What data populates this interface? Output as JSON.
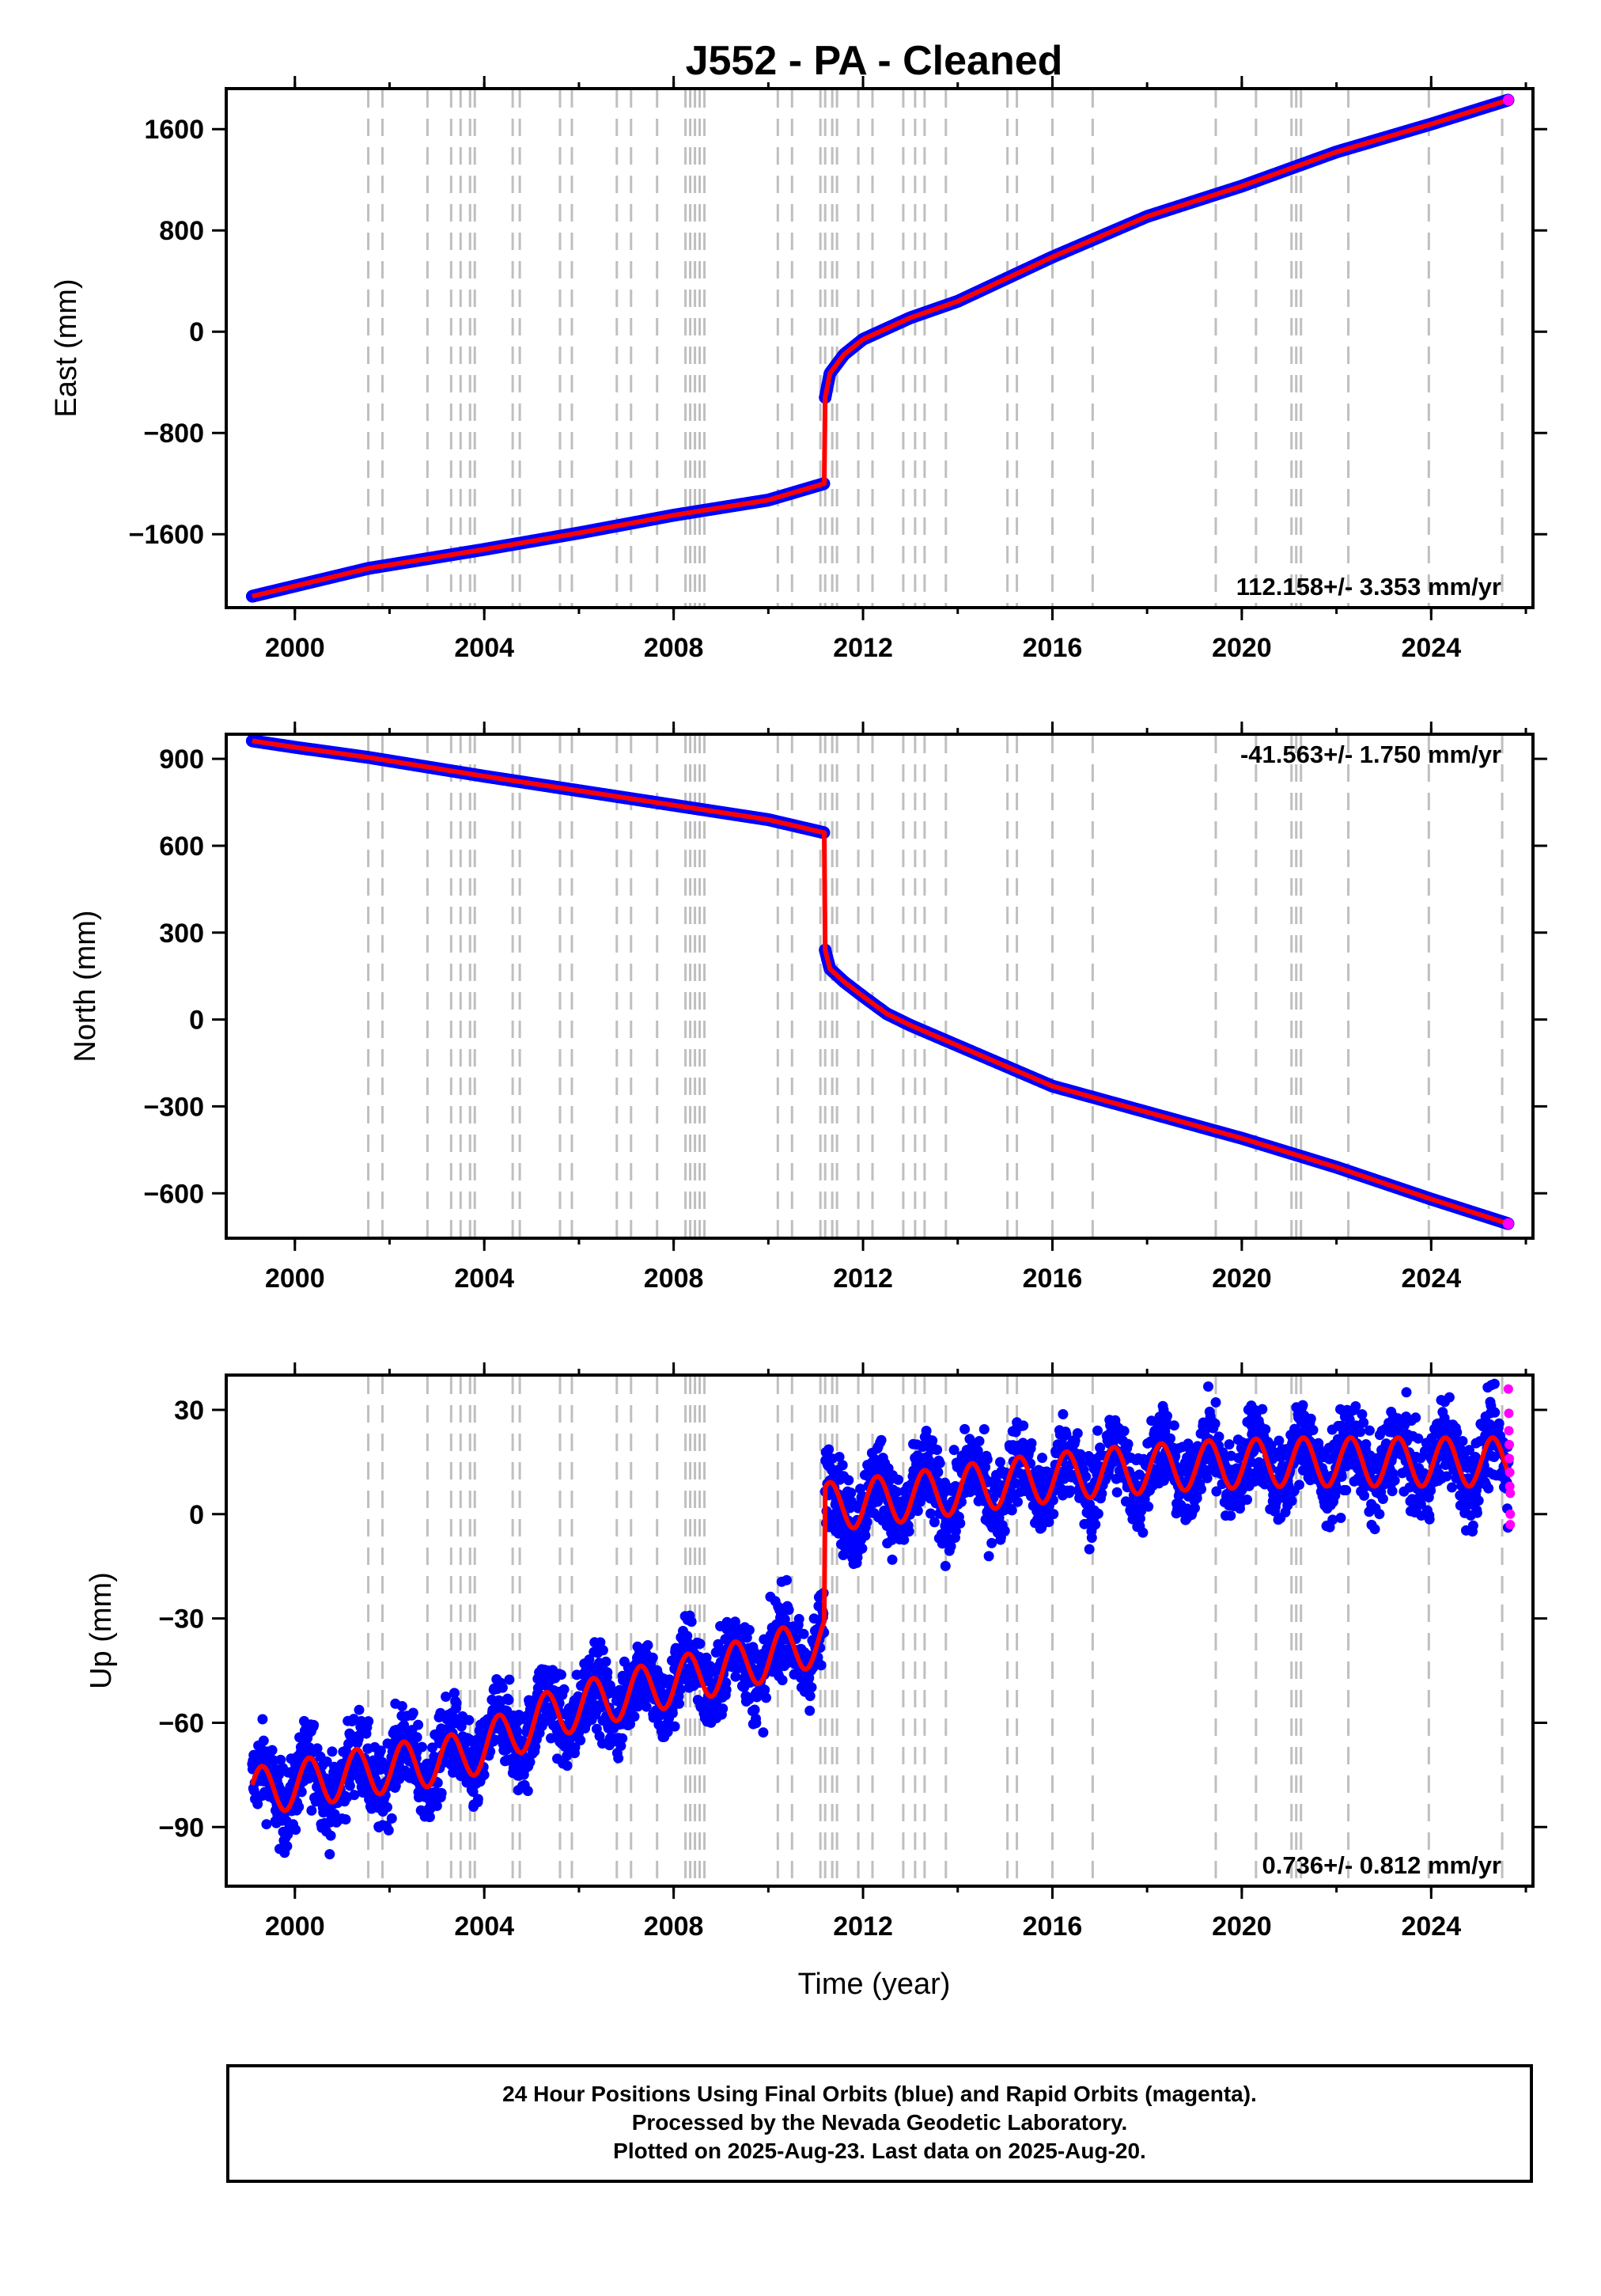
{
  "title": "J552  - PA - Cleaned",
  "colors": {
    "final_orbits": "#0000ff",
    "rapid_orbits": "#ff00ff",
    "model": "#ff0000",
    "event_lines": "#bfbfbf"
  },
  "xlabel": "Time (year)",
  "x_ticks": [
    2000,
    2004,
    2008,
    2012,
    2016,
    2020,
    2024
  ],
  "xlim": [
    1998.55,
    2026.15
  ],
  "event_lines": [
    2001.55,
    2001.85,
    2002.8,
    2003.3,
    2003.5,
    2003.7,
    2003.8,
    2004.6,
    2004.75,
    2005.6,
    2005.85,
    2006.8,
    2007.1,
    2007.65,
    2008.25,
    2008.35,
    2008.45,
    2008.55,
    2008.65,
    2010.2,
    2010.5,
    2011.1,
    2011.2,
    2011.35,
    2011.45,
    2011.9,
    2012.2,
    2012.85,
    2013.1,
    2013.3,
    2013.75,
    2015.05,
    2015.25,
    2016.0,
    2016.85,
    2019.45,
    2020.3,
    2021.05,
    2021.15,
    2021.25,
    2022.25,
    2023.95,
    2025.5
  ],
  "chart_data": [
    {
      "type": "scatter",
      "ylabel": "East (mm)",
      "y_ticks": [
        -1600,
        -800,
        0,
        800,
        1600
      ],
      "ylim": [
        -2180,
        1920
      ],
      "rate_text": "112.158+/- 3.353 mm/yr",
      "rate_position": "bottom-right",
      "series": [
        {
          "x": [
            1999.1,
            2001.55,
            2004.0,
            2006.0,
            2008.0,
            2010.0,
            2011.18
          ],
          "y": [
            -2090,
            -1870,
            -1720,
            -1590,
            -1450,
            -1330,
            -1200
          ]
        },
        {
          "x": [
            2011.2,
            2011.3,
            2011.6,
            2012.0,
            2013.0,
            2014.0,
            2016.0,
            2018.0,
            2020.0,
            2022.0,
            2024.0,
            2025.63
          ],
          "y": [
            -520,
            -330,
            -180,
            -60,
            110,
            240,
            590,
            910,
            1150,
            1420,
            1640,
            1830
          ]
        }
      ]
    },
    {
      "type": "scatter",
      "ylabel": "North (mm)",
      "y_ticks": [
        -600,
        -300,
        0,
        300,
        600,
        900
      ],
      "ylim": [
        -755,
        985
      ],
      "rate_text": "-41.563+/- 1.750 mm/yr",
      "rate_position": "top-right",
      "series": [
        {
          "x": [
            1999.1,
            2000.0,
            2001.55,
            2004.0,
            2006.0,
            2008.0,
            2010.0,
            2011.18
          ],
          "y": [
            962,
            940,
            905,
            840,
            790,
            740,
            690,
            645
          ]
        },
        {
          "x": [
            2011.2,
            2011.3,
            2011.6,
            2012.0,
            2012.5,
            2013.0,
            2014.0,
            2016.0,
            2018.0,
            2020.0,
            2022.0,
            2024.0,
            2025.63
          ],
          "y": [
            240,
            175,
            130,
            80,
            20,
            -20,
            -90,
            -230,
            -320,
            -410,
            -510,
            -620,
            -705
          ]
        }
      ]
    },
    {
      "type": "scatter",
      "ylabel": "Up (mm)",
      "y_ticks": [
        -90,
        -60,
        -30,
        0,
        30
      ],
      "ylim": [
        -107,
        40
      ],
      "rate_text": "0.736+/- 0.812 mm/yr",
      "rate_position": "bottom-right",
      "seasonal_amplitude_mm": 7,
      "series": [
        {
          "x": [
            1999.1,
            2001.55,
            2003.5,
            2005.5,
            2007.5,
            2009.5,
            2011.18
          ],
          "y": [
            -80,
            -74,
            -70,
            -57,
            -50,
            -43,
            -36
          ]
        },
        {
          "x": [
            2011.2,
            2013.0,
            2015.0,
            2017.0,
            2019.0,
            2021.0,
            2023.0,
            2025.63
          ],
          "y": [
            2,
            5,
            9,
            12,
            14,
            15,
            15,
            15
          ]
        }
      ],
      "rapid_points": {
        "x": [
          2025.63,
          2025.64,
          2025.64,
          2025.65,
          2025.65,
          2025.66,
          2025.66,
          2025.67,
          2025.67,
          2025.67
        ],
        "y": [
          36,
          29,
          24,
          20,
          16,
          12,
          8,
          6,
          0,
          -3
        ]
      }
    }
  ],
  "footer": {
    "line1": "24 Hour Positions Using Final Orbits (blue) and Rapid Orbits (magenta).",
    "line2": "Processed by the Nevada Geodetic Laboratory.",
    "line3": "Plotted on 2025-Aug-23. Last data on 2025-Aug-20."
  }
}
